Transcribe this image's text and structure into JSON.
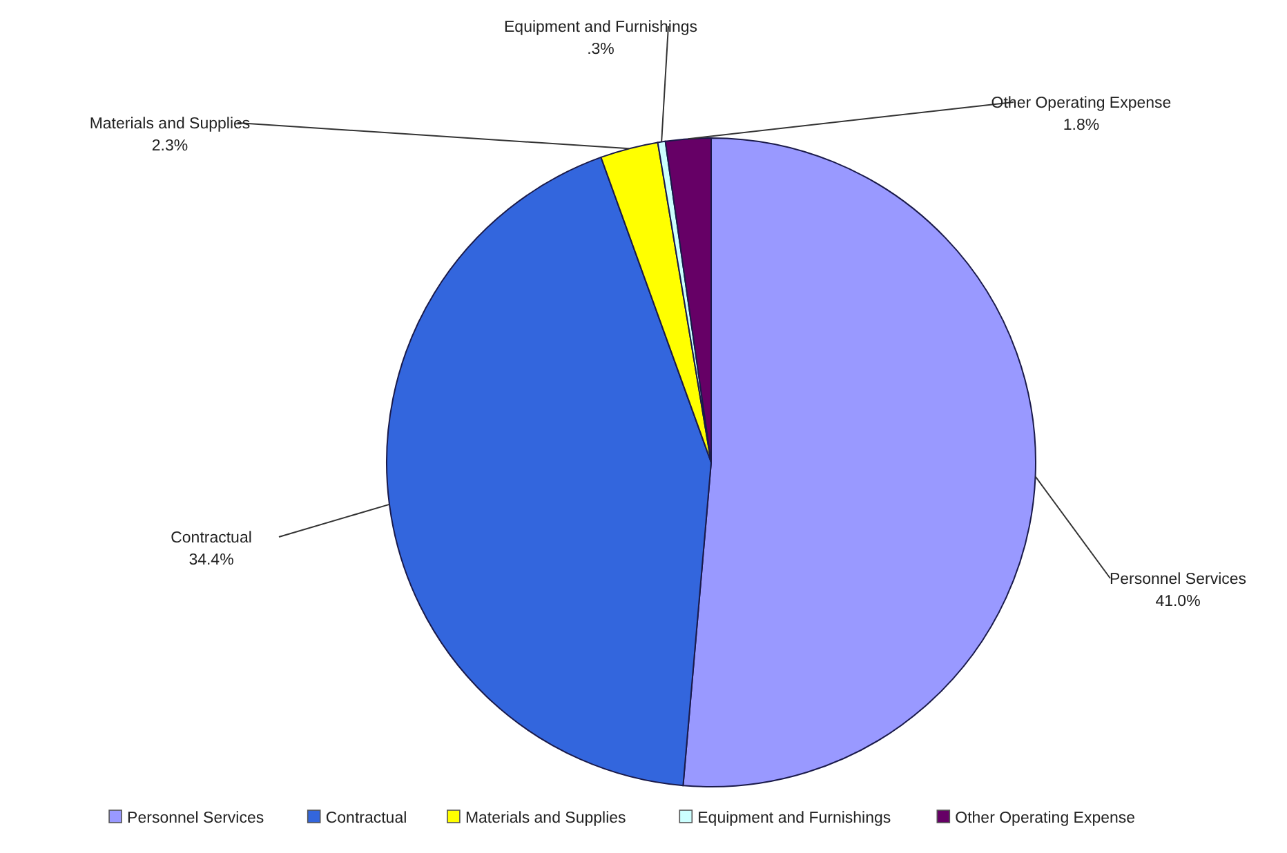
{
  "chart_data": {
    "type": "pie",
    "categories": [
      "Personnel Services",
      "Contractual",
      "Materials and Supplies",
      "Equipment and Furnishings",
      "Other Operating Expense"
    ],
    "values": [
      41.0,
      34.4,
      2.3,
      0.3,
      1.8
    ],
    "value_labels": [
      "41.0%",
      "34.4%",
      "2.3%",
      ".3%",
      "1.8%"
    ],
    "colors": [
      "#9999ff",
      "#3366dd",
      "#ffff00",
      "#ccffff",
      "#660066"
    ],
    "legend": "bottom"
  }
}
